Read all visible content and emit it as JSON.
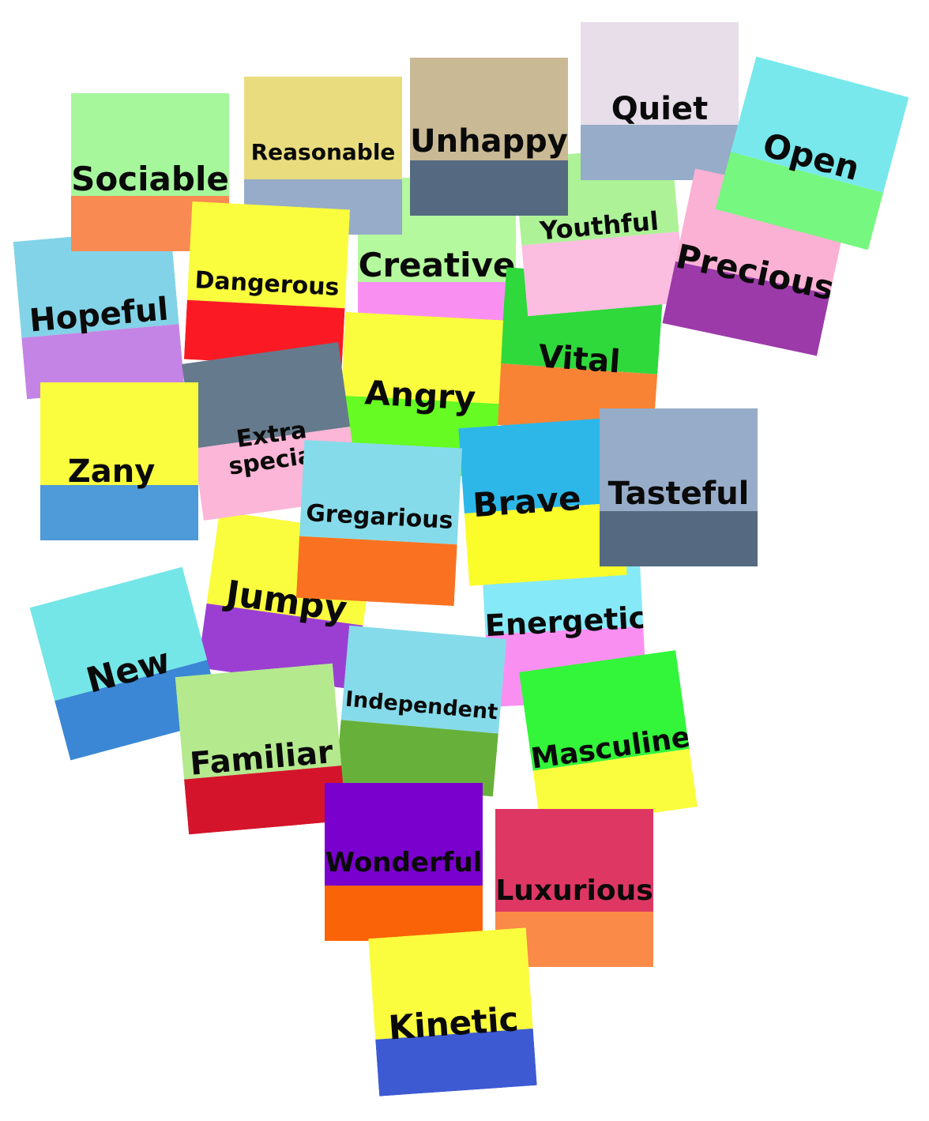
{
  "cards": [
    {
      "word": "Sociable",
      "top": "#a6f79c",
      "bottom": "#f98a52"
    },
    {
      "word": "Reasonable",
      "top": "#e8dc7e",
      "bottom": "#96acc8"
    },
    {
      "word": "Unhappy",
      "top": "#c9b995",
      "bottom": "#556a80"
    },
    {
      "word": "Quiet",
      "top": "#e7deea",
      "bottom": "#96acc8"
    },
    {
      "word": "Open",
      "top": "#78e8ec",
      "bottom": "#76f77f"
    },
    {
      "word": "Hopeful",
      "top": "#82d3e7",
      "bottom": "#c484e5"
    },
    {
      "word": "Dangerous",
      "top": "#fafd3d",
      "bottom": "#fb1a23"
    },
    {
      "word": "Creative",
      "top": "#b4f99d",
      "bottom": "#fa8ff2"
    },
    {
      "word": "Youthful",
      "top": "#adf297",
      "bottom": "#fbbde0"
    },
    {
      "word": "Precious",
      "top": "#fbb1d4",
      "bottom": "#9c3aaa"
    },
    {
      "word": "Vital",
      "top": "#2fd93c",
      "bottom": "#f98335"
    },
    {
      "word": "Angry",
      "top": "#fafd3d",
      "bottom": "#66fb22"
    },
    {
      "word": "Extra special",
      "top": "#657a8d",
      "bottom": "#fbb6d8"
    },
    {
      "word": "Zany",
      "top": "#fafd3d",
      "bottom": "#4f9ad9"
    },
    {
      "word": "Gregarious",
      "top": "#86dbea",
      "bottom": "#fa7221"
    },
    {
      "word": "Brave",
      "top": "#2db7e8",
      "bottom": "#fafd2a"
    },
    {
      "word": "Tasteful",
      "top": "#97acc8",
      "bottom": "#556a80"
    },
    {
      "word": "New",
      "top": "#75e6e8",
      "bottom": "#3b87d5"
    },
    {
      "word": "Jumpy",
      "top": "#fafd3d",
      "bottom": "#9b3fd3"
    },
    {
      "word": "Energetic",
      "top": "#86e9f7",
      "bottom": "#fa8ff2"
    },
    {
      "word": "Familiar",
      "top": "#b4e98e",
      "bottom": "#d4142a"
    },
    {
      "word": "Independent",
      "top": "#86dbea",
      "bottom": "#67b13b"
    },
    {
      "word": "Masculine",
      "top": "#33f63a",
      "bottom": "#fafd3d"
    },
    {
      "word": "Wonderful",
      "top": "#7a00ce",
      "bottom": "#fa6307"
    },
    {
      "word": "Luxurious",
      "top": "#de3764",
      "bottom": "#f98a48"
    },
    {
      "word": "Kinetic",
      "top": "#fafd3d",
      "bottom": "#3d5ad3"
    }
  ]
}
